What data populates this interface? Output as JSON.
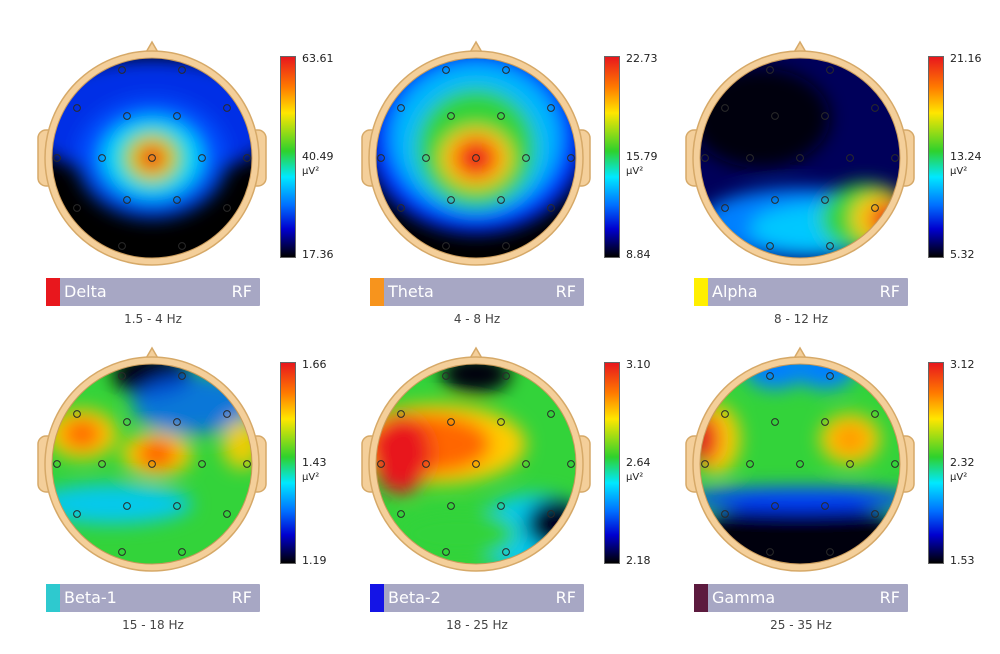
{
  "unit": "µV²",
  "panels": [
    {
      "band": "Delta",
      "tag": "RF",
      "range": "1.5 - 4 Hz",
      "swatch": "#e8171d",
      "max": "63.61",
      "mid": "40.49",
      "min": "17.36",
      "pattern": "center"
    },
    {
      "band": "Theta",
      "tag": "RF",
      "range": "4 - 8 Hz",
      "swatch": "#f7941d",
      "max": "22.73",
      "mid": "15.79",
      "min": "8.84",
      "pattern": "center-wide"
    },
    {
      "band": "Alpha",
      "tag": "RF",
      "range": "8 - 12 Hz",
      "swatch": "#ffef00",
      "max": "21.16",
      "mid": "13.24",
      "min": "5.32",
      "pattern": "right-low"
    },
    {
      "band": "Beta-1",
      "tag": "RF",
      "range": "15 - 18 Hz",
      "swatch": "#2ec9cf",
      "max": "1.66",
      "mid": "1.43",
      "min": "1.19",
      "pattern": "beta1"
    },
    {
      "band": "Beta-2",
      "tag": "RF",
      "range": "18 - 25 Hz",
      "swatch": "#1414e6",
      "max": "3.10",
      "mid": "2.64",
      "min": "2.18",
      "pattern": "beta2"
    },
    {
      "band": "Gamma",
      "tag": "RF",
      "range": "25 - 35 Hz",
      "swatch": "#5c1a3e",
      "max": "3.12",
      "mid": "2.32",
      "min": "1.53",
      "pattern": "gamma"
    }
  ]
}
